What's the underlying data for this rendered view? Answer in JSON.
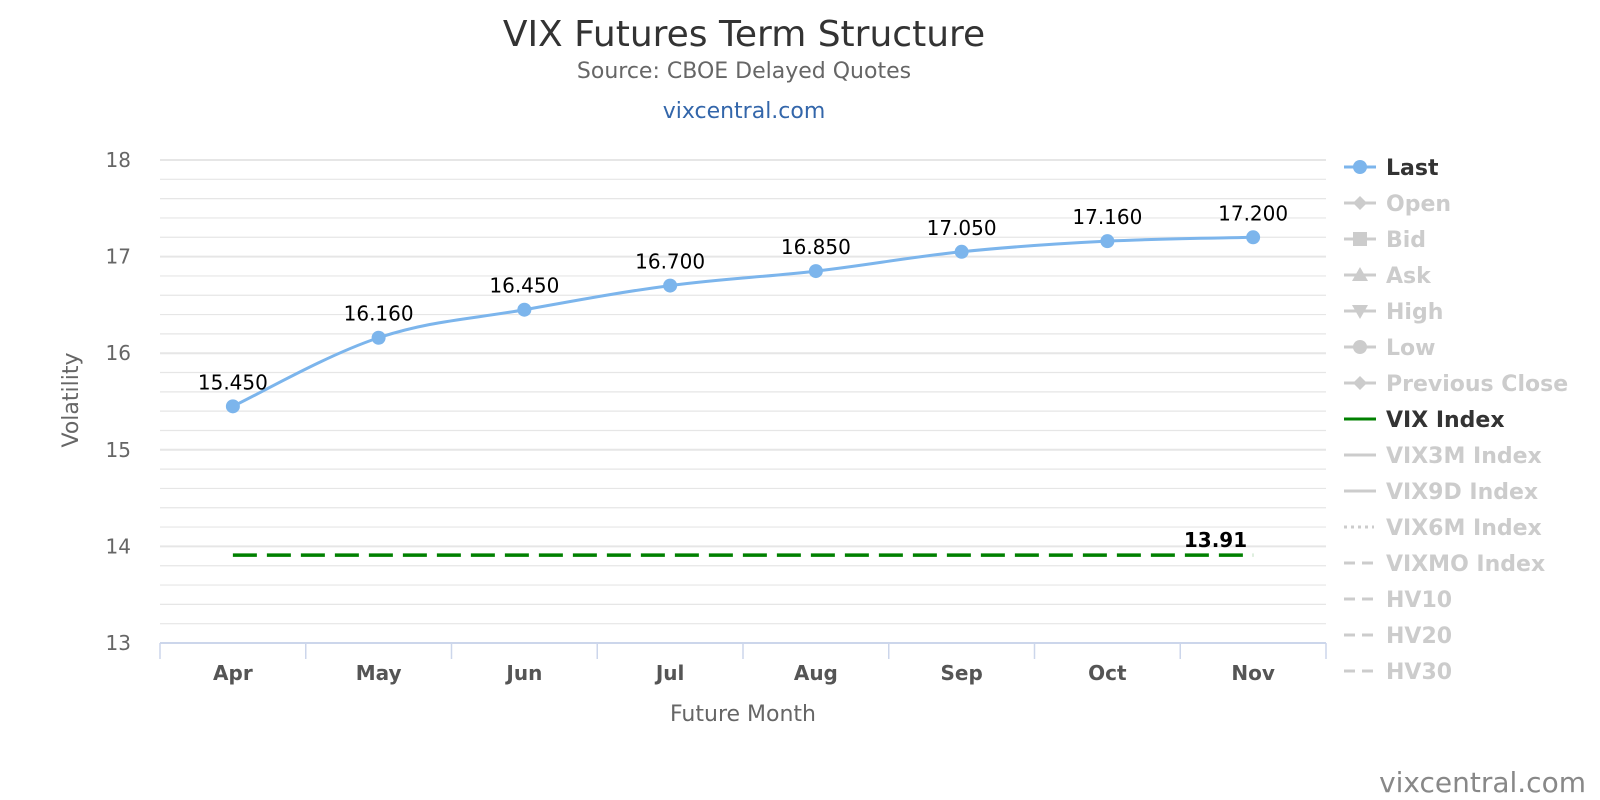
{
  "header": {
    "title": "VIX Futures Term Structure",
    "subtitle": "Source: CBOE Delayed Quotes",
    "link": "vixcentral.com"
  },
  "watermark": "vixcentral.com",
  "chart_data": {
    "type": "line",
    "title": "VIX Futures Term Structure",
    "subtitle": "Source: CBOE Delayed Quotes",
    "xlabel": "Future Month",
    "ylabel": "Volatility",
    "ylim": [
      13,
      18
    ],
    "y_major_ticks": [
      13,
      14,
      15,
      16,
      17,
      18
    ],
    "y_minor_step": 0.2,
    "grid": true,
    "legend_position": "right",
    "categories": [
      "Apr",
      "May",
      "Jun",
      "Jul",
      "Aug",
      "Sep",
      "Oct",
      "Nov"
    ],
    "series": [
      {
        "name": "Last",
        "values": [
          15.45,
          16.16,
          16.45,
          16.7,
          16.85,
          17.05,
          17.16,
          17.2
        ],
        "labels": [
          "15.450",
          "16.160",
          "16.450",
          "16.700",
          "16.850",
          "17.050",
          "17.160",
          "17.200"
        ],
        "color": "#7cb5ec",
        "marker": "circle",
        "visible": true
      },
      {
        "name": "VIX Index",
        "values": [
          13.91,
          13.91,
          13.91,
          13.91,
          13.91,
          13.91,
          13.91,
          13.91
        ],
        "label": "13.91",
        "color": "#008000",
        "dash": "dashed",
        "visible": true
      }
    ],
    "legend": [
      {
        "name": "Last",
        "symbol": "circle",
        "active": true,
        "color": "#7cb5ec"
      },
      {
        "name": "Open",
        "symbol": "diamond",
        "active": false
      },
      {
        "name": "Bid",
        "symbol": "square",
        "active": false
      },
      {
        "name": "Ask",
        "symbol": "triangle",
        "active": false
      },
      {
        "name": "High",
        "symbol": "triangle-down",
        "active": false
      },
      {
        "name": "Low",
        "symbol": "circle",
        "active": false
      },
      {
        "name": "Previous Close",
        "symbol": "diamond",
        "active": false
      },
      {
        "name": "VIX Index",
        "symbol": "line",
        "active": true,
        "color": "#008000"
      },
      {
        "name": "VIX3M Index",
        "symbol": "line",
        "active": false
      },
      {
        "name": "VIX9D Index",
        "symbol": "line",
        "active": false
      },
      {
        "name": "VIX6M Index",
        "symbol": "dotted",
        "active": false
      },
      {
        "name": "VIXMO Index",
        "symbol": "dashed",
        "active": false
      },
      {
        "name": "HV10",
        "symbol": "dashed",
        "active": false
      },
      {
        "name": "HV20",
        "symbol": "dashed",
        "active": false
      },
      {
        "name": "HV30",
        "symbol": "dashed",
        "active": false
      }
    ],
    "colors": {
      "inactive": "#cccccc",
      "active_text": "#333333",
      "grid": "#e6e6e6",
      "axis": "#ccd6eb"
    }
  }
}
